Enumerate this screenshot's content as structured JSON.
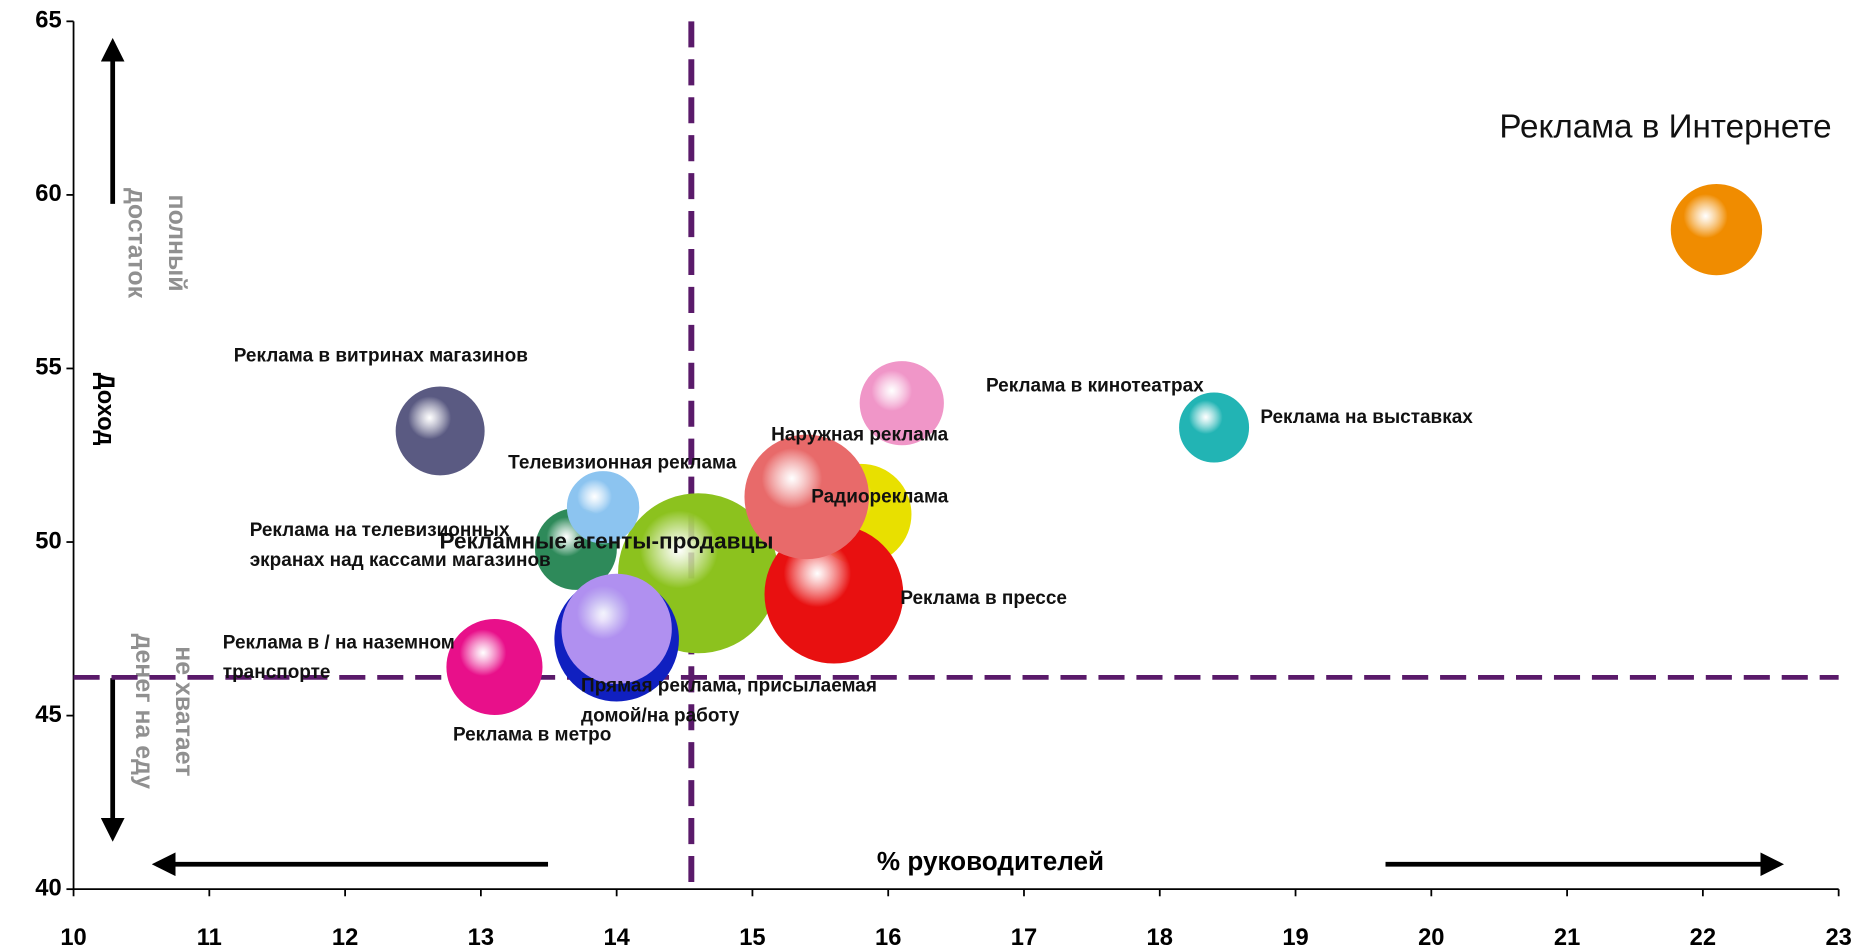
{
  "chart_data": {
    "type": "bubble",
    "x_label": "% руководителей",
    "y_label": "Доход",
    "annotations": {
      "top": [
        "полный",
        "достаток"
      ],
      "bottom": [
        "не хватает",
        "денег на еду"
      ]
    },
    "xlim": [
      10,
      23
    ],
    "xticks": [
      10,
      11,
      12,
      13,
      14,
      15,
      16,
      17,
      18,
      19,
      20,
      21,
      22,
      23
    ],
    "ylim": [
      40,
      65
    ],
    "yticks": [
      40,
      45,
      50,
      55,
      60,
      65
    ],
    "reference_lines": {
      "x": 14.55,
      "y": 46.1,
      "color": "#5a1a6a"
    },
    "series": [
      {
        "name": [
          "Рекламные агенты-продавцы"
        ],
        "color": "#8cc21e",
        "x": 14.6,
        "y": 49.1,
        "size": 67
      },
      {
        "name": [
          "Реклама на телевизионных",
          "экранах над кассами магазинов"
        ],
        "color": "#2e8a5a",
        "x": 13.7,
        "y": 49.8,
        "size": 34
      },
      {
        "name": [
          "Телевизионная реклама"
        ],
        "color": "#8cc4f0",
        "x": 13.9,
        "y": 51.0,
        "size": 30
      },
      {
        "name": [
          "Радиореклама"
        ],
        "color": "#e8e000",
        "x": 15.8,
        "y": 50.8,
        "size": 42
      },
      {
        "name": [
          "Реклама в прессе"
        ],
        "color": "#e81010",
        "x": 15.6,
        "y": 48.5,
        "size": 58
      },
      {
        "name": [
          "Наружная реклама"
        ],
        "color": "#e86a6a",
        "x": 15.4,
        "y": 51.3,
        "size": 52
      },
      {
        "name": [
          "Прямая реклама, присылаемая",
          "домой/на работу"
        ],
        "color": "#1020c0",
        "x": 14.0,
        "y": 47.2,
        "size": 52
      },
      {
        "name": [
          "Реклама в метро"
        ],
        "color": "#b090f0",
        "x": 14.0,
        "y": 47.5,
        "size": 46
      },
      {
        "name": [
          "Реклама в / на наземном",
          "транспорте"
        ],
        "color": "#e8108a",
        "x": 13.1,
        "y": 46.4,
        "size": 40
      },
      {
        "name": [
          "Реклама в витринах магазинов"
        ],
        "color": "#5a5a82",
        "x": 12.7,
        "y": 53.2,
        "size": 37
      },
      {
        "name": [
          "Реклама в кинотеатрах"
        ],
        "color": "#f096c8",
        "x": 16.1,
        "y": 54.0,
        "size": 35
      },
      {
        "name": [
          "Реклама на выставках"
        ],
        "color": "#22b4b4",
        "x": 18.4,
        "y": 53.3,
        "size": 29
      },
      {
        "name": [
          "Реклама в Интернете"
        ],
        "color": "#f08c00",
        "x": 22.1,
        "y": 59.0,
        "size": 38
      }
    ]
  }
}
